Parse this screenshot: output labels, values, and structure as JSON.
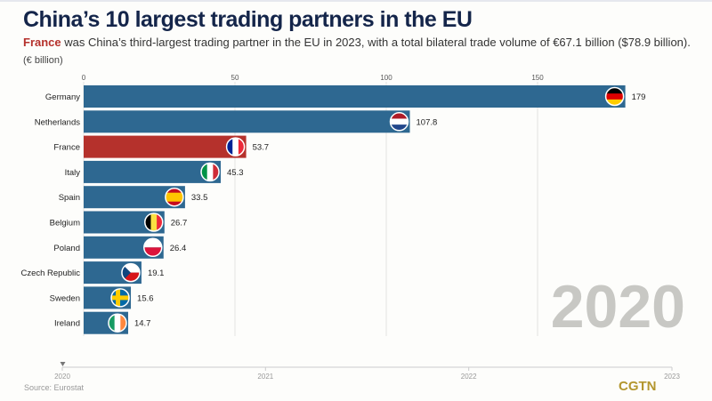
{
  "title": "China’s 10 largest trading partners in the EU",
  "subtitle_highlight": "France",
  "subtitle_rest": " was China’s third-largest trading partner in the EU in 2023, with a total bilateral trade volume of €67.1 billion ($78.9 billion).",
  "unit": "(€ billion)",
  "year_watermark": "2020",
  "source": "Source: Eurostat",
  "logo": "CGTN",
  "colors": {
    "bar": "#2e6891",
    "highlight": "#b5312c"
  },
  "chart_data": {
    "type": "bar",
    "orientation": "horizontal",
    "categories": [
      "Germany",
      "Netherlands",
      "France",
      "Italy",
      "Spain",
      "Belgium",
      "Poland",
      "Czech Republic",
      "Sweden",
      "Ireland"
    ],
    "values": [
      179,
      107.8,
      53.7,
      45.3,
      33.5,
      26.7,
      26.4,
      19.1,
      15.6,
      14.7
    ],
    "value_labels": [
      "179",
      "107.8",
      "53.7",
      "45.3",
      "33.5",
      "26.7",
      "26.4",
      "19.1",
      "15.6",
      "14.7"
    ],
    "highlight": "France",
    "xlim": [
      0,
      200
    ],
    "xticks": [
      0,
      50,
      100,
      150
    ],
    "grid": true,
    "timeline": {
      "ticks": [
        "2020",
        "2021",
        "2022",
        "2023"
      ],
      "current": "2020"
    }
  }
}
